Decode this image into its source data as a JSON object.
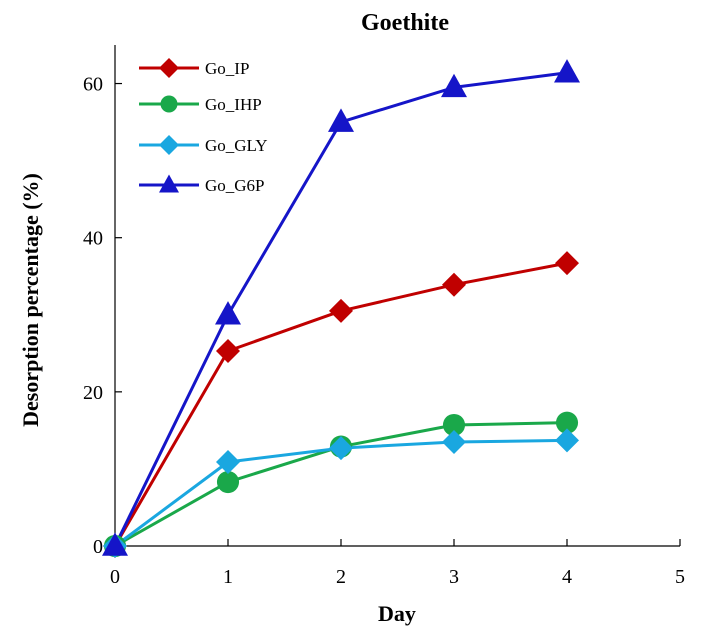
{
  "chart_data": {
    "type": "line",
    "title": "Goethite",
    "xlabel": "Day",
    "ylabel": "Desorption percentage (%)",
    "xlim": [
      0,
      5
    ],
    "ylim": [
      0,
      65
    ],
    "xticks": [
      0,
      1,
      2,
      3,
      4,
      5
    ],
    "yticks": [
      0,
      20,
      40,
      60
    ],
    "grid": false,
    "legend_position": "top-left",
    "x": [
      0,
      1,
      2,
      3,
      4
    ],
    "series": [
      {
        "name": "Go_IP",
        "values": [
          0,
          25.3,
          30.5,
          33.9,
          36.7
        ],
        "color": "#c00000",
        "marker": "diamond"
      },
      {
        "name": "Go_IHP",
        "values": [
          0,
          8.3,
          12.9,
          15.7,
          16.0
        ],
        "color": "#1aa84a",
        "marker": "circle"
      },
      {
        "name": "Go_GLY",
        "values": [
          0,
          10.9,
          12.7,
          13.5,
          13.7
        ],
        "color": "#1aa7e0",
        "marker": "diamond"
      },
      {
        "name": "Go_G6P",
        "values": [
          0,
          30.0,
          55.0,
          59.5,
          61.4
        ],
        "color": "#1515c8",
        "marker": "triangle"
      }
    ]
  }
}
